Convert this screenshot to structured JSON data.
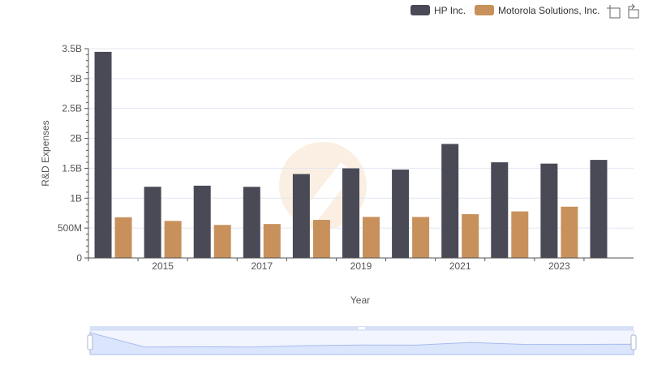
{
  "colors": {
    "series_a": "#4a4a56",
    "series_b": "#c8915c",
    "grid": "#e4e6f2",
    "axis": "#555555",
    "zoom_fill": "#dbe5fb",
    "zoom_line": "#a8bbef",
    "watermark": "#f6e2cc"
  },
  "icons": {
    "zoom": "zoom-icon",
    "restore": "restore-icon",
    "watermark": "watermark-logo"
  },
  "chart_data": {
    "type": "bar",
    "title": "",
    "xlabel": "Year",
    "ylabel": "R&D Expenses",
    "ylim": [
      0,
      3500000000
    ],
    "categories": [
      "2014",
      "2015",
      "2016",
      "2017",
      "2018",
      "2019",
      "2020",
      "2021",
      "2022",
      "2023",
      "2024"
    ],
    "x_tick_labels": [
      "2015",
      "2017",
      "2019",
      "2021",
      "2023"
    ],
    "y_tick_labels": [
      "0",
      "500M",
      "1B",
      "1.5B",
      "2B",
      "2.5B",
      "3B",
      "3.5B"
    ],
    "y_tick_values": [
      0,
      500000000,
      1000000000,
      1500000000,
      2000000000,
      2500000000,
      3000000000,
      3500000000
    ],
    "legend_position": "top-right",
    "grid": true,
    "series": [
      {
        "name": "HP Inc.",
        "values": [
          3447000000,
          1191000000,
          1209000000,
          1190000000,
          1404000000,
          1499000000,
          1478000000,
          1907000000,
          1600000000,
          1578000000,
          1640000000
        ]
      },
      {
        "name": "Motorola Solutions, Inc.",
        "values": [
          681000000,
          620000000,
          553000000,
          568000000,
          637000000,
          687000000,
          686000000,
          734000000,
          779000000,
          858000000,
          null
        ]
      }
    ],
    "overview_values": [
      3447000000,
      1191000000,
      1209000000,
      1190000000,
      1404000000,
      1499000000,
      1478000000,
      1907000000,
      1600000000,
      1578000000,
      1640000000
    ]
  }
}
